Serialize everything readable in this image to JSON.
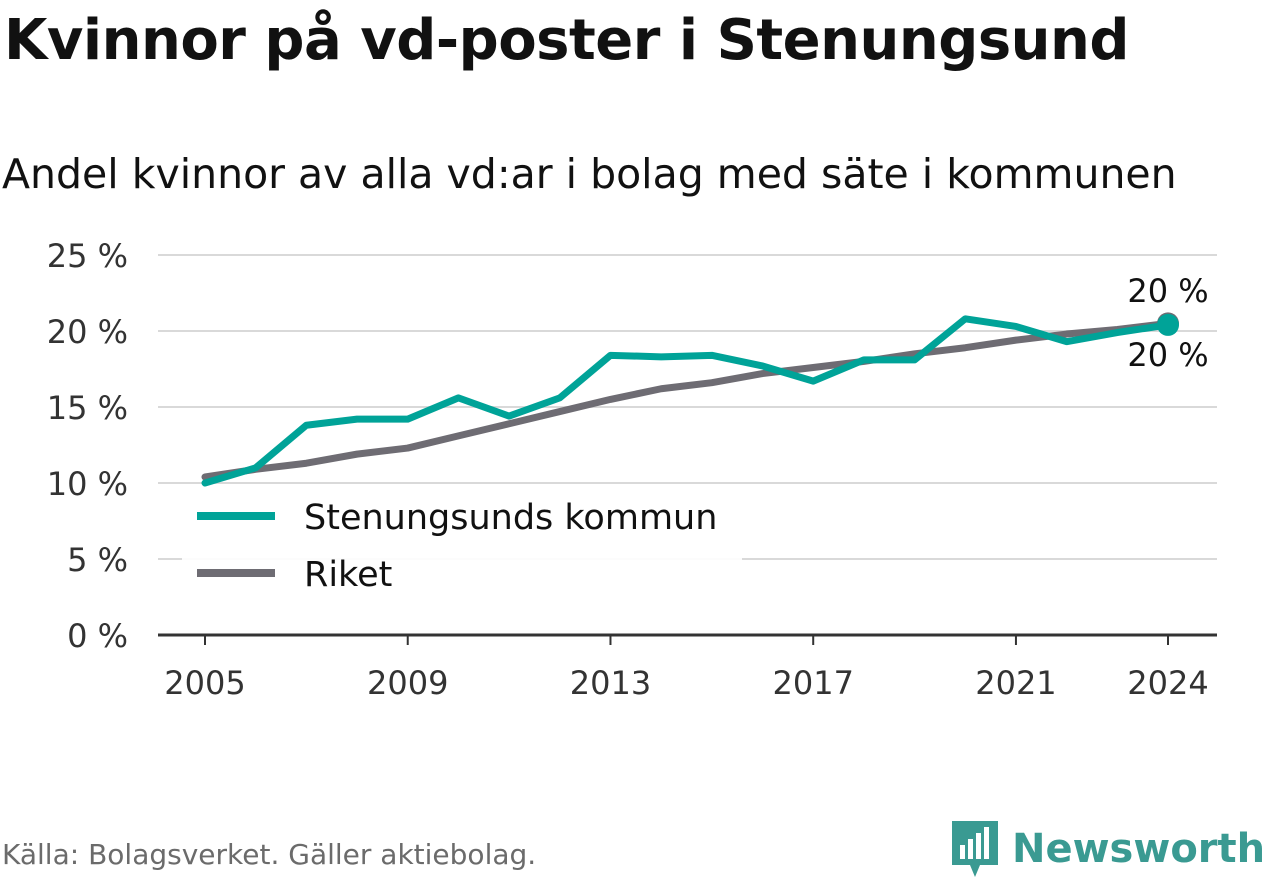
{
  "title": "Kvinnor på vd-poster i Stenungsund",
  "subtitle": "Andel kvinnor av alla vd:ar i bolag med säte i kommunen",
  "source": "Källa: Bolagsverket. Gäller aktiebolag.",
  "brand": "Newsworthy",
  "colors": {
    "stenungsund": "#00a398",
    "riket": "#6e6c73",
    "grid": "#d9d9d9",
    "axis": "#333333"
  },
  "chart_data": {
    "type": "line",
    "x": [
      2005,
      2006,
      2007,
      2008,
      2009,
      2010,
      2011,
      2012,
      2013,
      2014,
      2015,
      2016,
      2017,
      2018,
      2019,
      2020,
      2021,
      2022,
      2023,
      2024
    ],
    "x_ticks": [
      "2005",
      "2009",
      "2013",
      "2017",
      "2021",
      "2024"
    ],
    "y_ticks": [
      "0 %",
      "5 %",
      "10 %",
      "15 %",
      "20 %",
      "25 %"
    ],
    "ylim": [
      0,
      25
    ],
    "grid": true,
    "legend_position": "center-left",
    "series": [
      {
        "name": "Stenungsunds kommun",
        "values": [
          10.0,
          11.0,
          13.8,
          14.2,
          14.2,
          15.6,
          14.4,
          15.6,
          18.4,
          18.3,
          18.4,
          17.7,
          16.7,
          18.1,
          18.1,
          20.8,
          20.3,
          19.3,
          19.9,
          20.4
        ]
      },
      {
        "name": "Riket",
        "values": [
          10.4,
          10.9,
          11.3,
          11.9,
          12.3,
          13.1,
          13.9,
          14.7,
          15.5,
          16.2,
          16.6,
          17.2,
          17.6,
          18.0,
          18.5,
          18.9,
          19.4,
          19.8,
          20.1,
          20.5
        ]
      }
    ],
    "end_labels": [
      "20 %",
      "20 %"
    ]
  }
}
